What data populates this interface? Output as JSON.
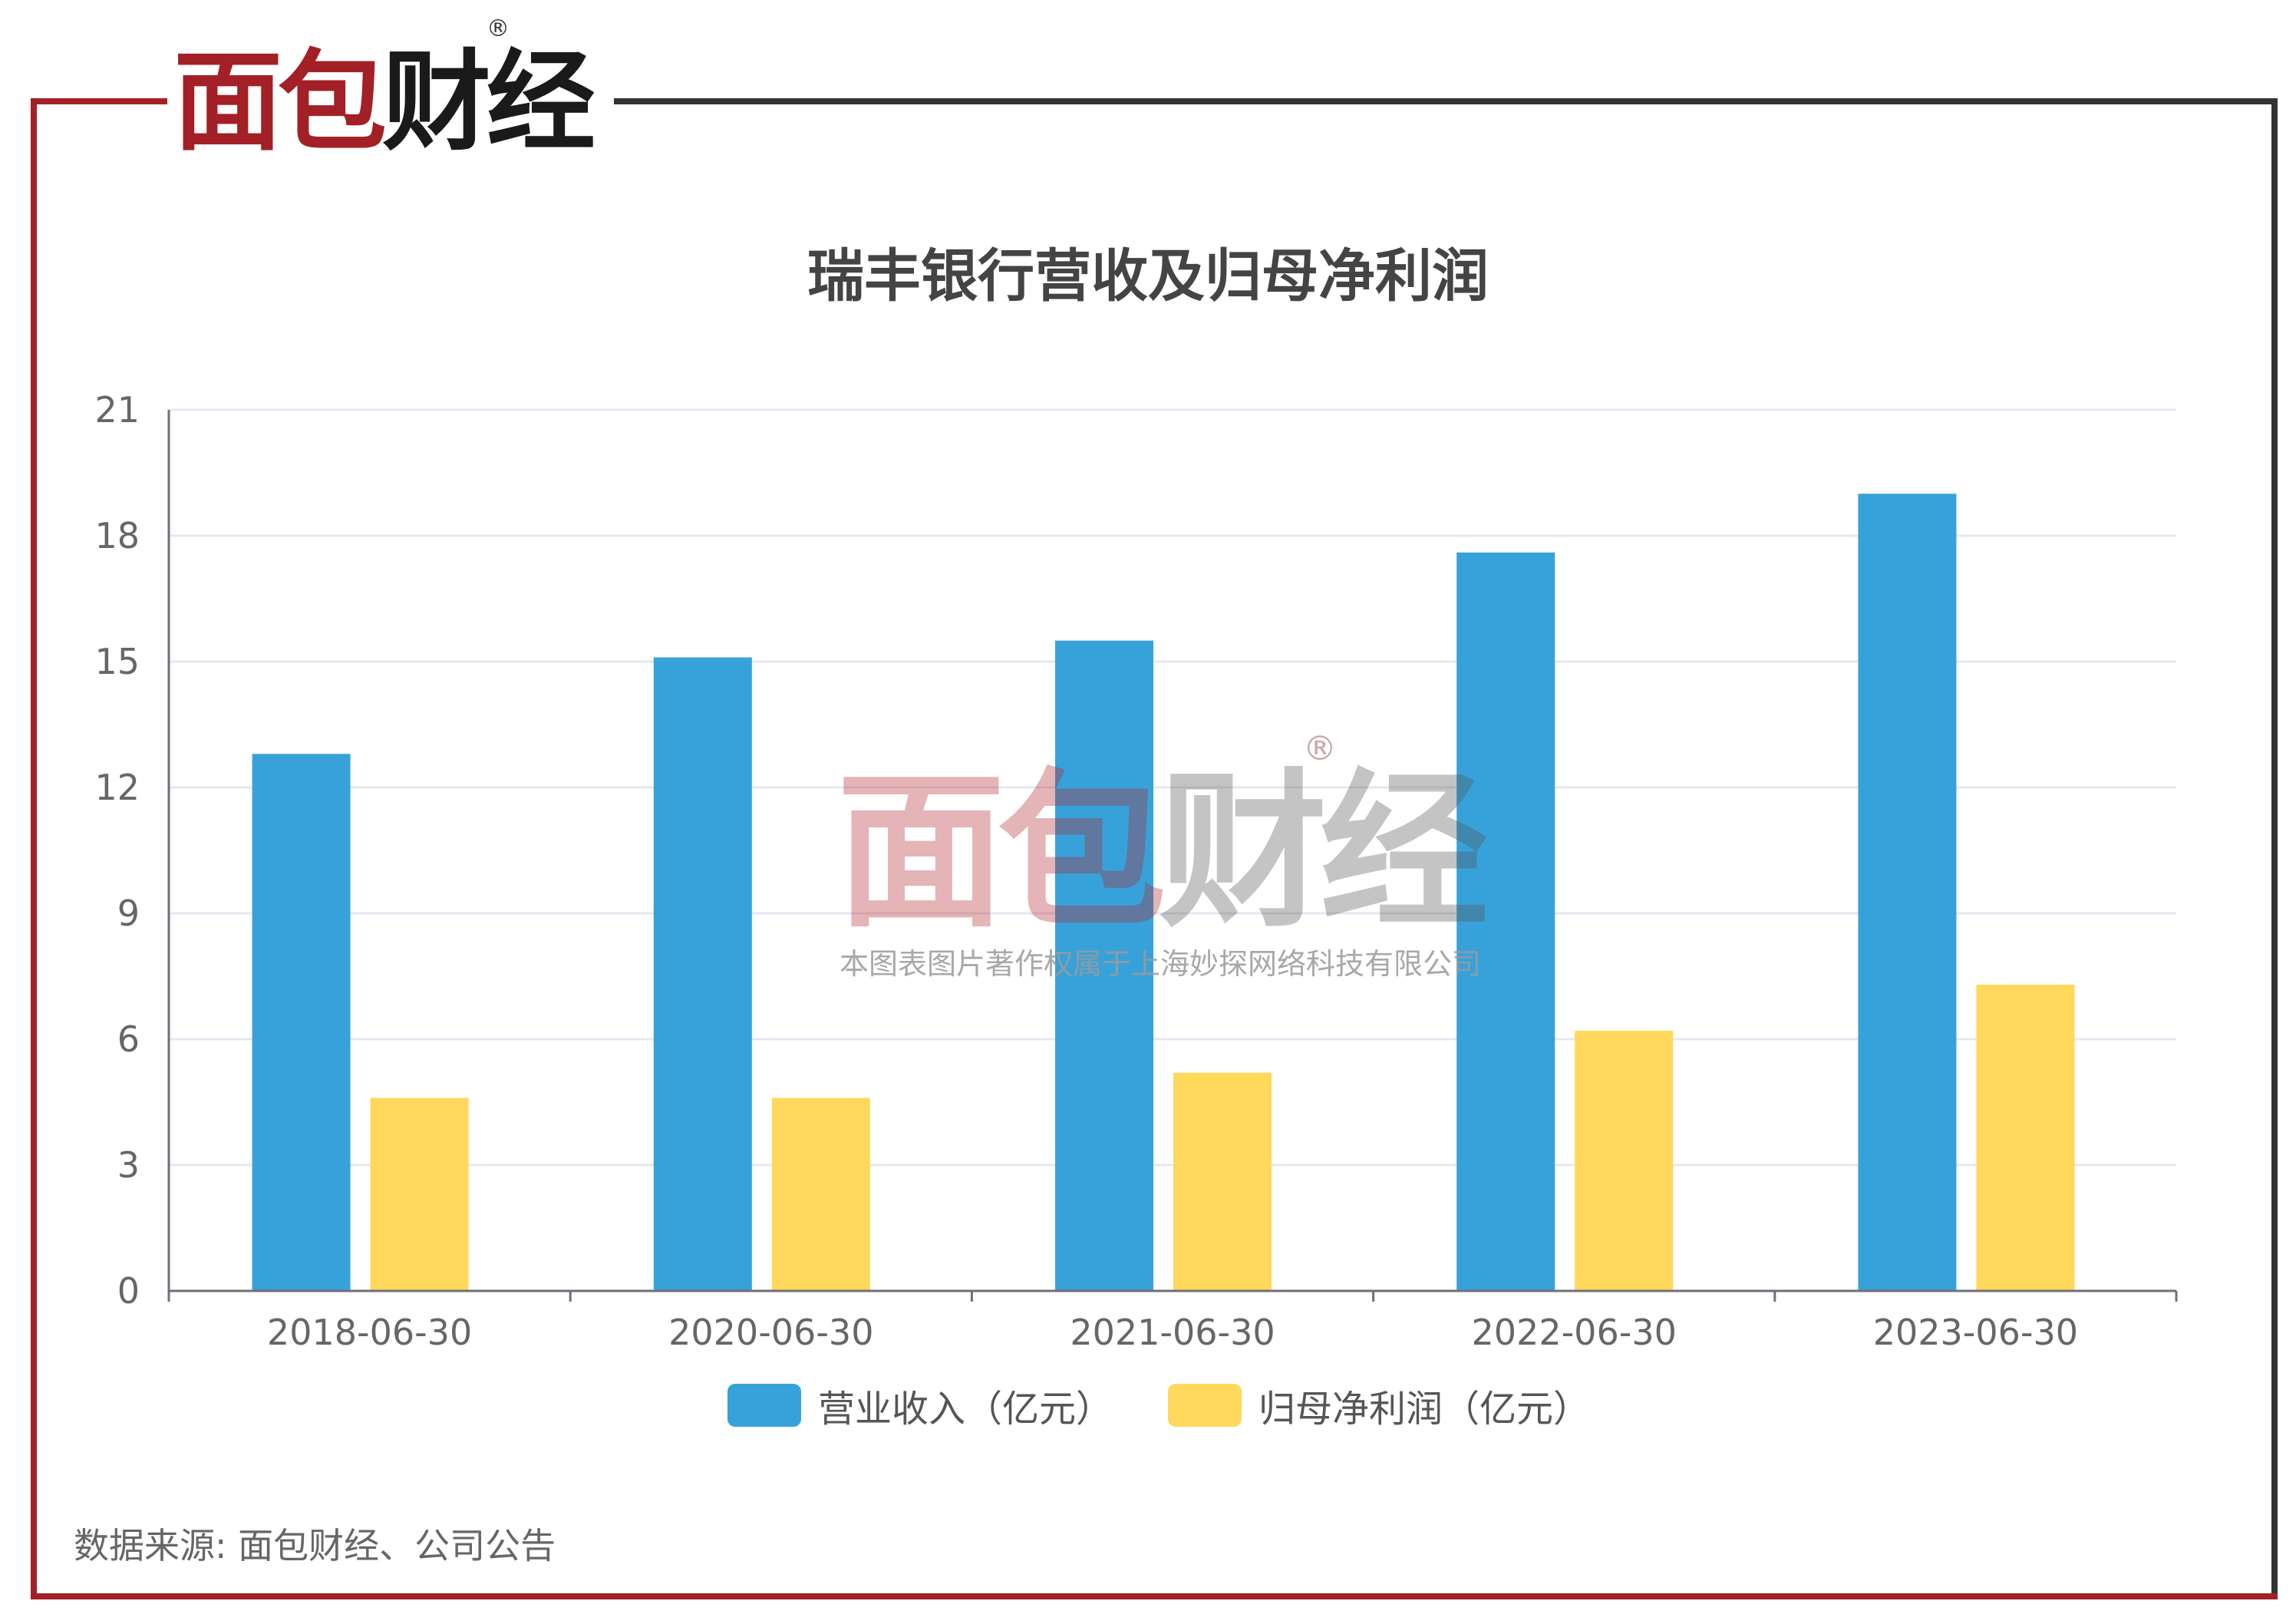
{
  "brand": {
    "logo_part1": "面包",
    "logo_part2": "财经",
    "registered_mark": "®",
    "accent_color": "#a32026",
    "dark_color": "#333333"
  },
  "watermark": {
    "logo_part1": "面包",
    "logo_part2": "财经",
    "registered_mark": "®",
    "copyright_text": "本图表图片著作权属于上海妙探网络科技有限公司"
  },
  "source_note": "数据来源: 面包财经、公司公告",
  "chart_data": {
    "type": "bar",
    "title": "瑞丰银行营收及归母净利润",
    "xlabel": "",
    "ylabel": "",
    "categories": [
      "2018-06-30",
      "2020-06-30",
      "2021-06-30",
      "2022-06-30",
      "2023-06-30"
    ],
    "series": [
      {
        "name": "营业收入（亿元）",
        "color": "#37a2da",
        "values": [
          12.8,
          15.1,
          15.5,
          17.6,
          19.0
        ]
      },
      {
        "name": "归母净利润（亿元）",
        "color": "#ffd85c",
        "values": [
          4.6,
          4.6,
          5.2,
          6.2,
          7.3
        ]
      }
    ],
    "ylim": [
      0,
      21
    ],
    "yticks": [
      0,
      3,
      6,
      9,
      12,
      15,
      18,
      21
    ],
    "grid": true,
    "legend_position": "bottom"
  }
}
